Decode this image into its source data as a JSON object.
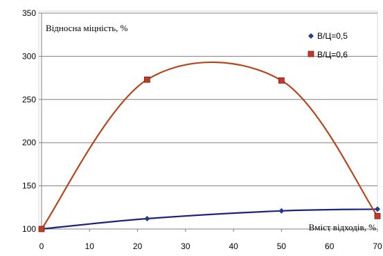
{
  "chart_data": {
    "type": "scatter",
    "ylabel": "Відносна міцність, %",
    "xlabel": "Вміст відходів, %",
    "xlim": [
      0,
      70
    ],
    "ylim": [
      100,
      350
    ],
    "x_ticks": [
      0,
      10,
      20,
      30,
      40,
      50,
      60,
      70
    ],
    "y_ticks": [
      100,
      150,
      200,
      250,
      300,
      350
    ],
    "grid": "horizontal",
    "legend_position": "top-right",
    "series": [
      {
        "name": "В/Ц=0,5",
        "marker": "diamond",
        "color": "#1f3a93",
        "line_color": "#1a237e",
        "x": [
          0,
          22,
          50,
          70
        ],
        "y": [
          100,
          112,
          121,
          123
        ]
      },
      {
        "name": "В/Ц=0,6",
        "marker": "square",
        "color": "#c0392b",
        "line_color": "#b5451b",
        "x": [
          0,
          22,
          50,
          70
        ],
        "y": [
          100,
          273,
          272,
          115
        ]
      }
    ]
  }
}
